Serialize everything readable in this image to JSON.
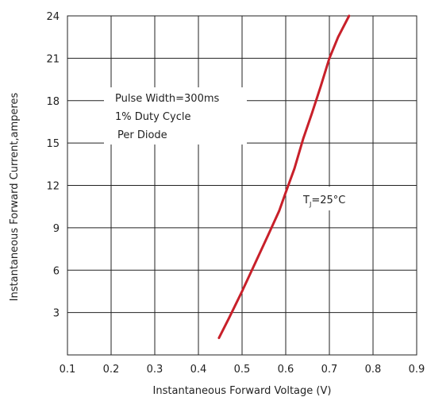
{
  "chart_data": {
    "type": "line",
    "title": "",
    "xlabel": "Instantaneous Forward Voltage (V)",
    "ylabel": "Instantaneous Forward Current,amperes",
    "xlim": [
      0.1,
      0.9
    ],
    "ylim": [
      0,
      24
    ],
    "x_ticks": [
      "0.1",
      "0.2",
      "0.3",
      "0.4",
      "0.5",
      "0.6",
      "0.7",
      "0.8",
      "0.9"
    ],
    "y_ticks": [
      "3",
      "6",
      "9",
      "12",
      "15",
      "18",
      "21",
      "24"
    ],
    "grid": true,
    "series": [
      {
        "name": "",
        "color": "#c8202a",
        "x": [
          0.447,
          0.47,
          0.5,
          0.53,
          0.56,
          0.585,
          0.6,
          0.62,
          0.64,
          0.66,
          0.68,
          0.7,
          0.72,
          0.745
        ],
        "y": [
          1.2,
          2.6,
          4.5,
          6.5,
          8.5,
          10.2,
          11.5,
          13.2,
          15.3,
          17.1,
          19.0,
          21.0,
          22.5,
          24.0
        ]
      }
    ],
    "annotations": {
      "conditions": [
        "Pulse Width=300ms",
        "1% Duty Cycle",
        "Per Diode"
      ],
      "temperature": {
        "main": "T",
        "sub": "J",
        "rest": "=25°C"
      }
    }
  }
}
